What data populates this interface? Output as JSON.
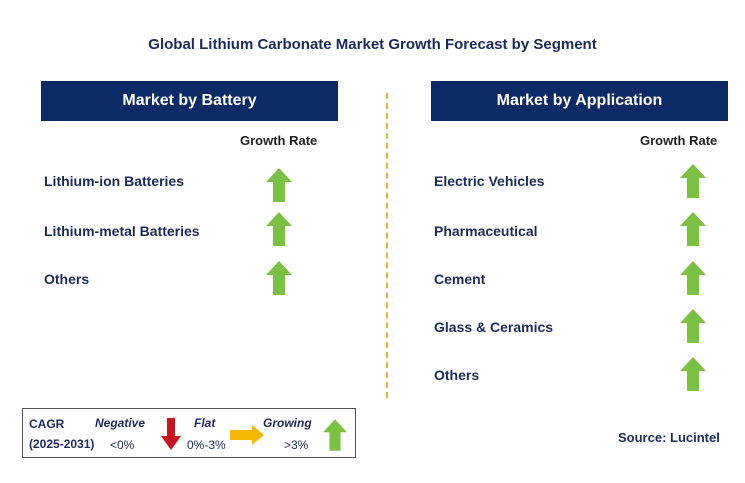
{
  "title": "Global Lithium Carbonate Market Growth Forecast by Segment",
  "left_panel": {
    "header": "Market by Battery",
    "growth_label": "Growth Rate",
    "rows": [
      {
        "label": "Lithium-ion Batteries",
        "trend": "growing"
      },
      {
        "label": "Lithium-metal Batteries",
        "trend": "growing"
      },
      {
        "label": "Others",
        "trend": "growing"
      }
    ]
  },
  "right_panel": {
    "header": "Market by Application",
    "growth_label": "Growth Rate",
    "rows": [
      {
        "label": "Electric Vehicles",
        "trend": "growing"
      },
      {
        "label": "Pharmaceutical",
        "trend": "growing"
      },
      {
        "label": "Cement",
        "trend": "growing"
      },
      {
        "label": "Glass & Ceramics",
        "trend": "growing"
      },
      {
        "label": "Others",
        "trend": "growing"
      }
    ]
  },
  "legend": {
    "cagr": "CAGR",
    "period": "(2025-2031)",
    "negative_label": "Negative",
    "negative_range": "<0%",
    "flat_label": "Flat",
    "flat_range": "0%-3%",
    "growing_label": "Growing",
    "growing_range": ">3%"
  },
  "source": "Source: Lucintel",
  "colors": {
    "header_bg": "#0b2a66",
    "up_arrow": "#7ac143",
    "down_arrow": "#c8141e",
    "flat_arrow": "#f5b800",
    "divider": "#f0b030"
  },
  "icons": {
    "growing": "up-arrow-icon",
    "negative": "down-arrow-icon",
    "flat": "right-arrow-icon"
  }
}
